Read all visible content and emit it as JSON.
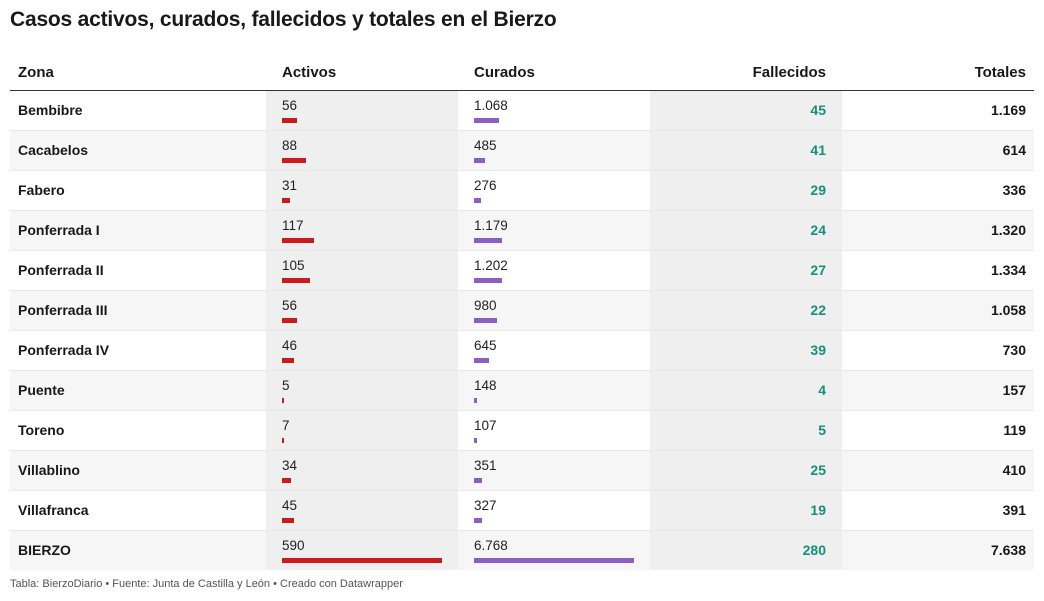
{
  "title": "Casos activos, curados, fallecidos y totales en el Bierzo",
  "colors": {
    "activos_bar": "#c71e1d",
    "curados_bar": "#8c5fc4",
    "fallecidos_text": "#15907a",
    "column_shade": "#efefef",
    "row_alt": "#f6f6f6"
  },
  "footer": "Tabla: BierzoDiario • Fuente: Junta de Castilla y León • Creado con Datawrapper",
  "chart_data": {
    "type": "table",
    "columns": [
      "Zona",
      "Activos",
      "Curados",
      "Fallecidos",
      "Totales"
    ],
    "bar_max": {
      "activos": 590,
      "curados": 6768
    },
    "rows": [
      {
        "zona": "Bembibre",
        "activos": 56,
        "activos_label": "56",
        "curados": 1068,
        "curados_label": "1.068",
        "fallecidos": "45",
        "totales": "1.169"
      },
      {
        "zona": "Cacabelos",
        "activos": 88,
        "activos_label": "88",
        "curados": 485,
        "curados_label": "485",
        "fallecidos": "41",
        "totales": "614"
      },
      {
        "zona": "Fabero",
        "activos": 31,
        "activos_label": "31",
        "curados": 276,
        "curados_label": "276",
        "fallecidos": "29",
        "totales": "336"
      },
      {
        "zona": "Ponferrada I",
        "activos": 117,
        "activos_label": "117",
        "curados": 1179,
        "curados_label": "1.179",
        "fallecidos": "24",
        "totales": "1.320"
      },
      {
        "zona": "Ponferrada II",
        "activos": 105,
        "activos_label": "105",
        "curados": 1202,
        "curados_label": "1.202",
        "fallecidos": "27",
        "totales": "1.334"
      },
      {
        "zona": "Ponferrada III",
        "activos": 56,
        "activos_label": "56",
        "curados": 980,
        "curados_label": "980",
        "fallecidos": "22",
        "totales": "1.058"
      },
      {
        "zona": "Ponferrada IV",
        "activos": 46,
        "activos_label": "46",
        "curados": 645,
        "curados_label": "645",
        "fallecidos": "39",
        "totales": "730"
      },
      {
        "zona": "Puente",
        "activos": 5,
        "activos_label": "5",
        "curados": 148,
        "curados_label": "148",
        "fallecidos": "4",
        "totales": "157"
      },
      {
        "zona": "Toreno",
        "activos": 7,
        "activos_label": "7",
        "curados": 107,
        "curados_label": "107",
        "fallecidos": "5",
        "totales": "119"
      },
      {
        "zona": "Villablino",
        "activos": 34,
        "activos_label": "34",
        "curados": 351,
        "curados_label": "351",
        "fallecidos": "25",
        "totales": "410"
      },
      {
        "zona": "Villafranca",
        "activos": 45,
        "activos_label": "45",
        "curados": 327,
        "curados_label": "327",
        "fallecidos": "19",
        "totales": "391"
      },
      {
        "zona": "BIERZO",
        "activos": 590,
        "activos_label": "590",
        "curados": 6768,
        "curados_label": "6.768",
        "fallecidos": "280",
        "totales": "7.638"
      }
    ]
  }
}
